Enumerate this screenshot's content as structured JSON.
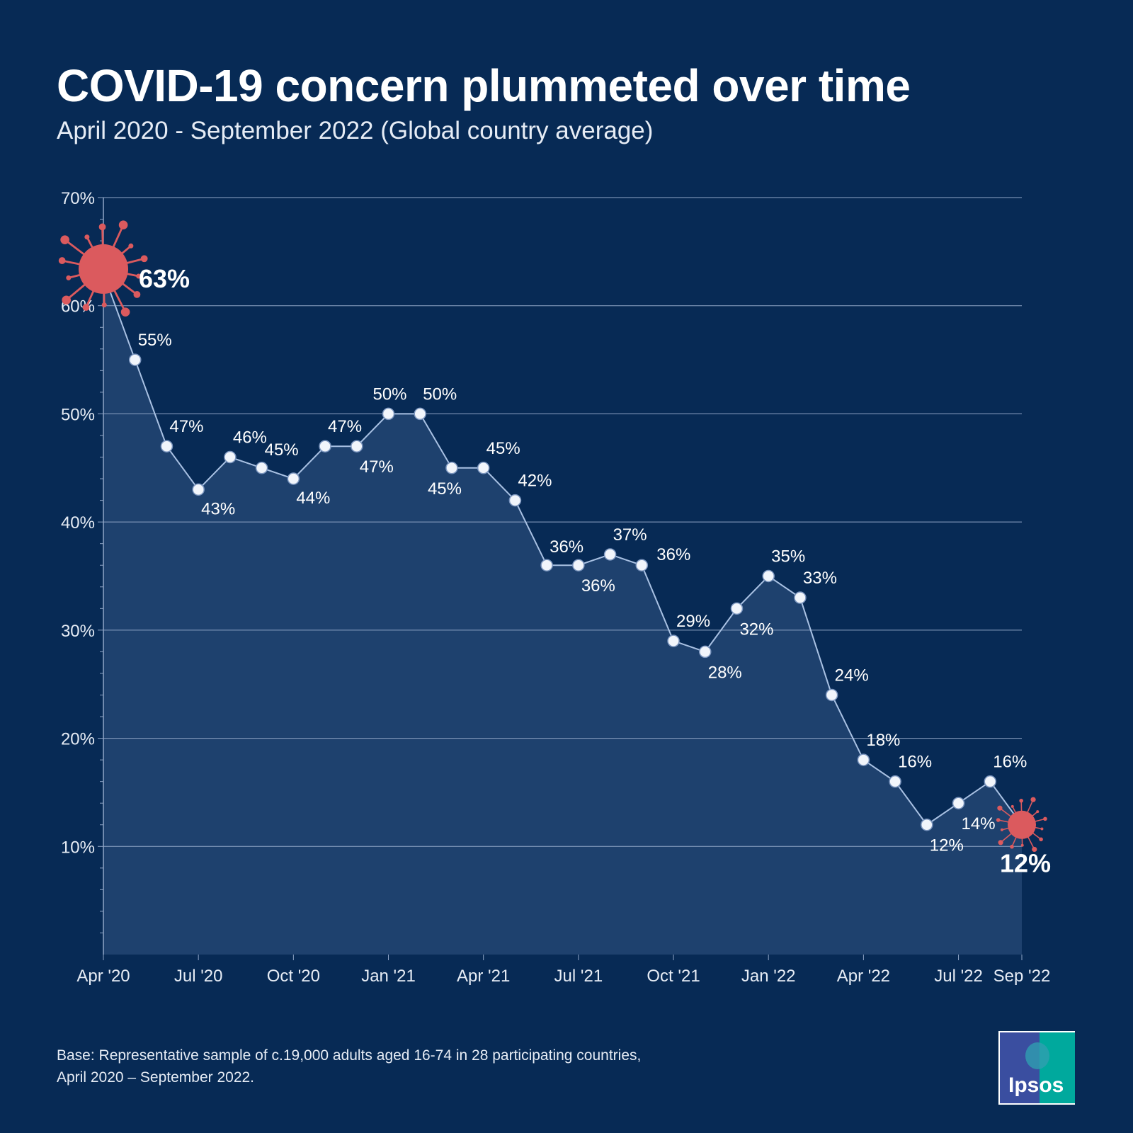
{
  "title": "COVID-19 concern plummeted over time",
  "subtitle": "April 2020 - September 2022 (Global country average)",
  "footnote": [
    "Base: Representative sample of c.19,000 adults aged 16-74 in 28 participating countries,",
    "April 2020 – September 2022."
  ],
  "logo_text": "Ipsos",
  "colors": {
    "background": "#072a55",
    "area": "#1e416e",
    "line": "#a9c1e3",
    "virus": "#db5a5e",
    "point": "#f1f5fb"
  },
  "chart_data": {
    "type": "area",
    "title": "COVID-19 concern plummeted over time",
    "x": [
      "Apr 2020",
      "May 2020",
      "Jun 2020",
      "Jul 2020",
      "Aug 2020",
      "Sep 2020",
      "Oct 2020",
      "Nov 2020",
      "Dec 2020",
      "Jan 2021",
      "Feb 2021",
      "Mar 2021",
      "Apr 2021",
      "May 2021",
      "Jun 2021",
      "Jul 2021",
      "Aug 2021",
      "Sep 2021",
      "Oct 2021",
      "Nov 2021",
      "Dec 2021",
      "Jan 2022",
      "Feb 2022",
      "Mar 2022",
      "Apr 2022",
      "May 2022",
      "Jun 2022",
      "Jul 2022",
      "Aug 2022",
      "Sep 2022"
    ],
    "values": [
      63,
      55,
      47,
      43,
      46,
      45,
      44,
      47,
      47,
      50,
      50,
      45,
      45,
      42,
      36,
      36,
      37,
      36,
      29,
      28,
      32,
      35,
      33,
      24,
      18,
      16,
      12,
      14,
      16,
      12
    ],
    "data_labels": [
      "63%",
      "55%",
      "47%",
      "43%",
      "46%",
      "45%",
      "44%",
      "47%",
      "47%",
      "50%",
      "50%",
      "45%",
      "45%",
      "42%",
      "36%",
      "36%",
      "37%",
      "36%",
      "29%",
      "28%",
      "32%",
      "35%",
      "33%",
      "24%",
      "18%",
      "16%",
      "12%",
      "14%",
      "16%",
      "12%"
    ],
    "x_ticks": [
      "Apr '20",
      "Jul '20",
      "Oct '20",
      "Jan '21",
      "Apr '21",
      "Jul '21",
      "Oct '21",
      "Jan '22",
      "Apr '22",
      "Jul '22",
      "Sep '22"
    ],
    "y_ticks": [
      "10%",
      "20%",
      "30%",
      "40%",
      "50%",
      "60%",
      "70%"
    ],
    "ylim": [
      0,
      70
    ],
    "grid": true,
    "legend": "none"
  }
}
